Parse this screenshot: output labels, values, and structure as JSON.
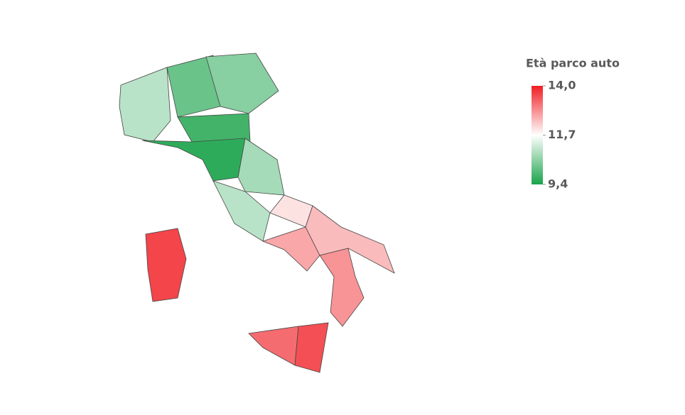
{
  "chart_data": {
    "type": "choropleth",
    "legend_title": "Età parco auto",
    "scale": {
      "range": [
        9.4,
        14.0
      ],
      "colors": [
        "#1aa34a",
        "#ffffff",
        "#f01e24"
      ],
      "ticks": [
        {
          "value": 14.0,
          "label": "14,0"
        },
        {
          "value": 11.7,
          "label": "11,7"
        },
        {
          "value": 9.4,
          "label": "9,4"
        }
      ]
    },
    "values": [
      11.0,
      10.2,
      10.5,
      9.8,
      9.6,
      10.8,
      11.0,
      12.0,
      12.6,
      12.4,
      12.8,
      13.2,
      13.5,
      13.6
    ]
  }
}
